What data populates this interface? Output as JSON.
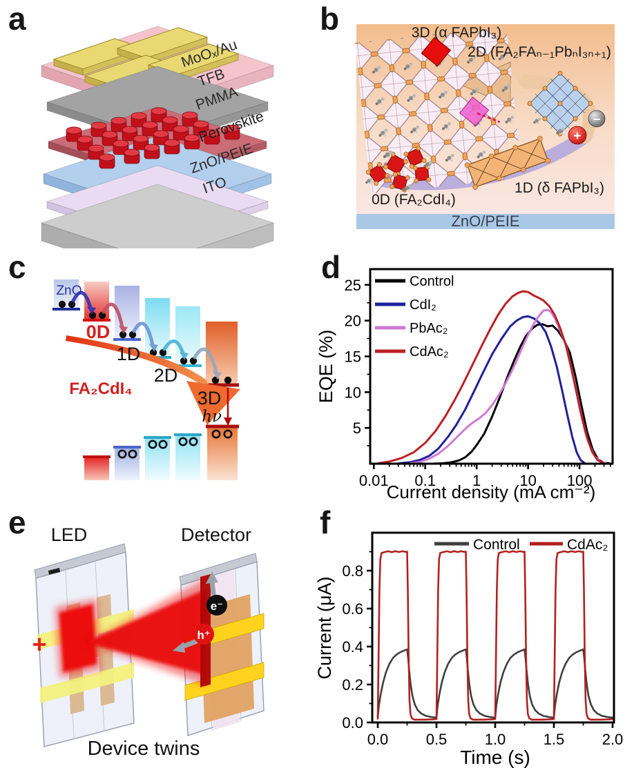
{
  "panels": {
    "a": {
      "letter": "a",
      "layer_labels": [
        "MoOₓ/Au",
        "TFB",
        "PMMA",
        "Perovskite",
        "ZnO/PEIE",
        "ITO"
      ]
    },
    "b": {
      "letter": "b",
      "labels": {
        "phase_3d": "3D (α FAPbI₃)",
        "phase_2d": "2D (FA₂FAₙ₋₁PbₙI₃ₙ₊₁)",
        "phase_1d": "1D (δ FAPbI₃)",
        "phase_0d": "0D (FA₂CdI₄)",
        "substrate": "ZnO/PEIE",
        "positive_charge": "+",
        "negative_charge": "−"
      }
    },
    "c": {
      "letter": "c",
      "labels": {
        "zno": "ZnO",
        "level_0d": "0D",
        "level_1d": "1D",
        "level_2d": "2D",
        "level_3d": "3D",
        "compound": "FA₂CdI₄",
        "photon": "hν"
      }
    },
    "d": {
      "letter": "d"
    },
    "e": {
      "letter": "e",
      "labels": {
        "led": "LED",
        "detector": "Detector",
        "caption": "Device twins",
        "positive_terminal": "+",
        "electron": "e⁻",
        "hole": "h⁺"
      }
    },
    "f": {
      "letter": "f"
    }
  },
  "colors": {
    "beam_red": "#e90808",
    "substrate_blue": "#a9c8e6",
    "perovskite_red": "#d01020",
    "swoosh_red": "#e23212"
  },
  "chart_data": [
    {
      "id": "eqe",
      "panel": "d",
      "type": "line",
      "title": "",
      "xlabel": "Current density (mA cm⁻²)",
      "ylabel": "EQE (%)",
      "xscale": "log",
      "xlim": [
        0.0085,
        440
      ],
      "ylim": [
        0,
        27.2
      ],
      "xticks": [
        0.01,
        0.1,
        1,
        10,
        100
      ],
      "xtick_labels": [
        "0.01",
        "0.1",
        "1",
        "10",
        "100"
      ],
      "yticks": [
        5,
        10,
        15,
        20,
        25
      ],
      "ytick_labels": [
        "5",
        "10",
        "15",
        "20",
        "25"
      ],
      "grid": false,
      "legend_position": "top-left-inside",
      "series": [
        {
          "name": "Control",
          "color": "#000000",
          "points": [
            [
              0.15,
              0.02
            ],
            [
              0.22,
              0.06
            ],
            [
              0.3,
              0.15
            ],
            [
              0.45,
              0.45
            ],
            [
              0.6,
              0.9
            ],
            [
              0.8,
              1.7
            ],
            [
              1,
              2.6
            ],
            [
              1.4,
              4.2
            ],
            [
              2,
              6.6
            ],
            [
              2.8,
              9.2
            ],
            [
              4,
              12.2
            ],
            [
              5.5,
              14.6
            ],
            [
              7,
              16.3
            ],
            [
              9,
              17.8
            ],
            [
              12,
              18.9
            ],
            [
              15,
              19.4
            ],
            [
              19,
              19.5
            ],
            [
              24,
              19.2
            ],
            [
              30,
              19.3
            ],
            [
              38,
              18.6
            ],
            [
              50,
              17.3
            ],
            [
              65,
              15.5
            ],
            [
              85,
              12
            ],
            [
              110,
              8
            ],
            [
              140,
              4.5
            ],
            [
              180,
              2
            ],
            [
              230,
              0.6
            ],
            [
              300,
              0.12
            ],
            [
              380,
              0.05
            ]
          ]
        },
        {
          "name": "CdI₂",
          "color": "#20209a",
          "points": [
            [
              0.03,
              0.05
            ],
            [
              0.05,
              0.2
            ],
            [
              0.08,
              0.55
            ],
            [
              0.12,
              1.1
            ],
            [
              0.18,
              2.1
            ],
            [
              0.28,
              3.8
            ],
            [
              0.4,
              5.4
            ],
            [
              0.6,
              7.6
            ],
            [
              0.9,
              10.2
            ],
            [
              1.3,
              12.6
            ],
            [
              2,
              15.3
            ],
            [
              3,
              17.4
            ],
            [
              4.5,
              19.2
            ],
            [
              6,
              20.0
            ],
            [
              8,
              20.5
            ],
            [
              10,
              20.6
            ],
            [
              13,
              20.3
            ],
            [
              17,
              19.6
            ],
            [
              22,
              18.4
            ],
            [
              28,
              16.4
            ],
            [
              36,
              13.6
            ],
            [
              46,
              10.2
            ],
            [
              58,
              6.8
            ],
            [
              72,
              3.8
            ],
            [
              88,
              1.6
            ],
            [
              105,
              0.5
            ],
            [
              125,
              0.1
            ]
          ]
        },
        {
          "name": "PbAc₂",
          "color": "#cc7bd4",
          "points": [
            [
              0.05,
              0.05
            ],
            [
              0.08,
              0.25
            ],
            [
              0.12,
              0.7
            ],
            [
              0.18,
              1.4
            ],
            [
              0.27,
              2.4
            ],
            [
              0.4,
              3.6
            ],
            [
              0.55,
              4.6
            ],
            [
              0.7,
              5.3
            ],
            [
              0.9,
              5.9
            ],
            [
              1.1,
              6.3
            ],
            [
              1.5,
              7.1
            ],
            [
              2,
              8.2
            ],
            [
              2.7,
              9.6
            ],
            [
              3.5,
              11.0
            ],
            [
              4.5,
              12.5
            ],
            [
              6,
              14.4
            ],
            [
              8,
              16.5
            ],
            [
              10,
              18.0
            ],
            [
              13,
              19.6
            ],
            [
              16,
              20.6
            ],
            [
              20,
              21.4
            ],
            [
              24,
              21.5
            ],
            [
              28,
              21.2
            ],
            [
              34,
              20.2
            ],
            [
              42,
              18.6
            ],
            [
              54,
              16.8
            ],
            [
              68,
              13.6
            ],
            [
              88,
              10.0
            ],
            [
              112,
              6.4
            ],
            [
              145,
              3.2
            ],
            [
              195,
              1.1
            ],
            [
              255,
              0.3
            ],
            [
              330,
              0.05
            ]
          ]
        },
        {
          "name": "CdAc₂",
          "color": "#bb2024",
          "points": [
            [
              0.012,
              0.05
            ],
            [
              0.02,
              0.3
            ],
            [
              0.035,
              0.8
            ],
            [
              0.06,
              1.6
            ],
            [
              0.1,
              2.9
            ],
            [
              0.16,
              4.6
            ],
            [
              0.25,
              6.7
            ],
            [
              0.38,
              9.0
            ],
            [
              0.55,
              11.2
            ],
            [
              0.8,
              13.6
            ],
            [
              1.2,
              16.2
            ],
            [
              1.8,
              18.7
            ],
            [
              2.6,
              20.8
            ],
            [
              3.6,
              22.3
            ],
            [
              5,
              23.4
            ],
            [
              6.5,
              23.9
            ],
            [
              8,
              24.1
            ],
            [
              10,
              24.0
            ],
            [
              13,
              23.5
            ],
            [
              16,
              23.2
            ],
            [
              20,
              22.8
            ],
            [
              26,
              22.0
            ],
            [
              33,
              20.8
            ],
            [
              42,
              19.0
            ],
            [
              54,
              16.6
            ],
            [
              68,
              13.6
            ],
            [
              85,
              10.4
            ],
            [
              105,
              7.2
            ],
            [
              135,
              4.0
            ],
            [
              175,
              1.7
            ],
            [
              225,
              0.5
            ],
            [
              290,
              0.1
            ]
          ]
        }
      ]
    },
    {
      "id": "photoresponse",
      "panel": "f",
      "type": "line",
      "title": "",
      "xlabel": "Time (s)",
      "ylabel": "Current (μA)",
      "xscale": "linear",
      "xlim": [
        0,
        2
      ],
      "ylim": [
        0,
        1.0
      ],
      "xticks": [
        0,
        0.5,
        1,
        1.5,
        2
      ],
      "xtick_labels": [
        "0.0",
        "0.5",
        "1.0",
        "1.5",
        "2.0"
      ],
      "yticks": [
        0,
        0.2,
        0.4,
        0.6,
        0.8
      ],
      "ytick_labels": [
        "0.0",
        "0.2",
        "0.4",
        "0.6",
        "0.8"
      ],
      "grid": false,
      "legend_position": "top-inside",
      "pulse_period_s": 0.5,
      "pulse_on_s": 0.25,
      "num_pulses": 4,
      "series": [
        {
          "name": "Control",
          "color": "#3e3e3e",
          "on_level": 0.385,
          "off_level": 0.028,
          "period_points": [
            [
              0.0,
              0.03
            ],
            [
              0.01,
              0.09
            ],
            [
              0.025,
              0.15
            ],
            [
              0.045,
              0.21
            ],
            [
              0.07,
              0.265
            ],
            [
              0.1,
              0.31
            ],
            [
              0.13,
              0.34
            ],
            [
              0.16,
              0.358
            ],
            [
              0.19,
              0.37
            ],
            [
              0.22,
              0.378
            ],
            [
              0.25,
              0.385
            ],
            [
              0.258,
              0.34
            ],
            [
              0.268,
              0.27
            ],
            [
              0.28,
              0.2
            ],
            [
              0.295,
              0.14
            ],
            [
              0.315,
              0.095
            ],
            [
              0.34,
              0.065
            ],
            [
              0.37,
              0.047
            ],
            [
              0.41,
              0.035
            ],
            [
              0.46,
              0.028
            ],
            [
              0.5,
              0.026
            ]
          ]
        },
        {
          "name": "CdAc₂",
          "color": "#b2201e",
          "on_level": 0.9,
          "off_level": 0.018,
          "period_points": [
            [
              0.0,
              0.02
            ],
            [
              0.006,
              0.3
            ],
            [
              0.014,
              0.7
            ],
            [
              0.022,
              0.86
            ],
            [
              0.032,
              0.893
            ],
            [
              0.06,
              0.898
            ],
            [
              0.09,
              0.902
            ],
            [
              0.12,
              0.897
            ],
            [
              0.15,
              0.903
            ],
            [
              0.18,
              0.898
            ],
            [
              0.21,
              0.902
            ],
            [
              0.24,
              0.899
            ],
            [
              0.25,
              0.9
            ],
            [
              0.256,
              0.7
            ],
            [
              0.263,
              0.35
            ],
            [
              0.27,
              0.12
            ],
            [
              0.278,
              0.045
            ],
            [
              0.29,
              0.022
            ],
            [
              0.31,
              0.015
            ],
            [
              0.4,
              0.015
            ],
            [
              0.46,
              0.016
            ],
            [
              0.5,
              0.018
            ]
          ]
        }
      ]
    }
  ]
}
